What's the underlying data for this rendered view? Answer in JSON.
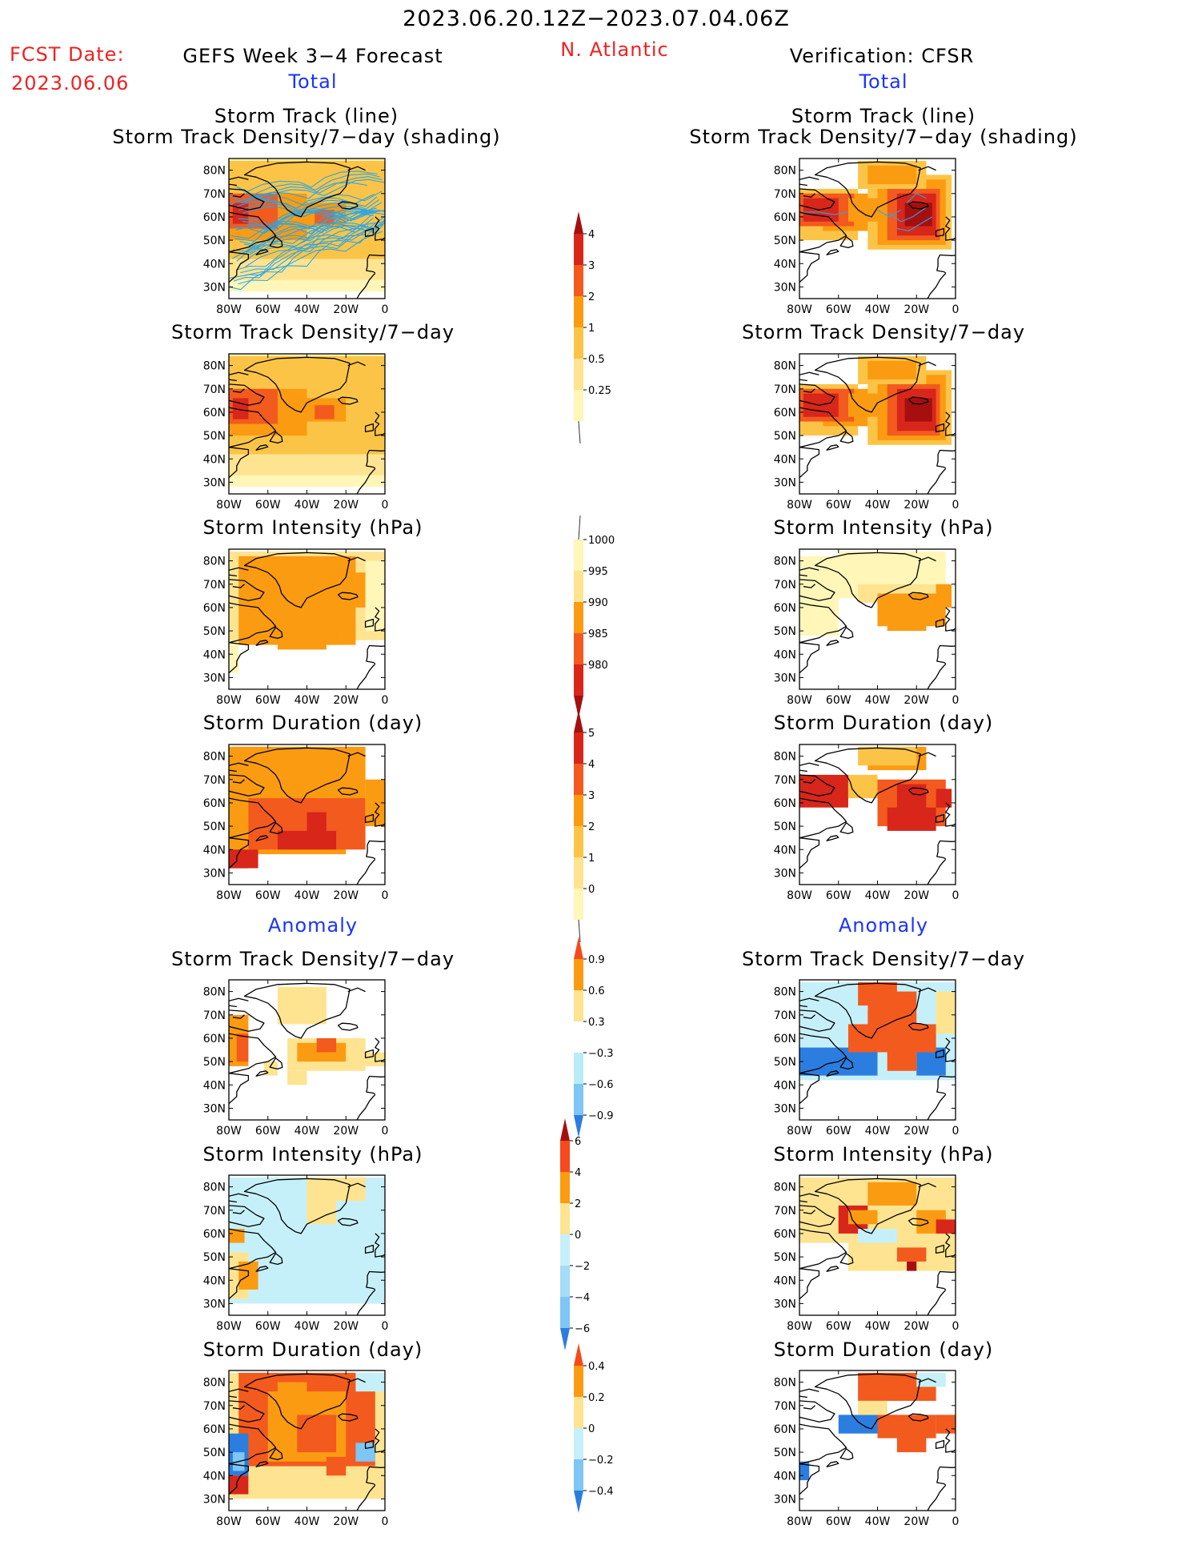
{
  "header": {
    "date_range": "2023.06.20.12Z−2023.07.04.06Z",
    "region": "N. Atlantic",
    "fcst_label": "FCST Date:",
    "fcst_date": "2023.06.06",
    "left_title": "GEFS Week 3−4 Forecast",
    "right_title": "Verification: CFSR",
    "left_total": "Total",
    "right_total": "Total",
    "left_anomaly": "Anomaly",
    "right_anomaly": "Anomaly"
  },
  "panel_titles": {
    "track_l1": "Storm Track (line)",
    "track_l2": "Storm Track Density/7−day (shading)",
    "density": "Storm Track Density/7−day",
    "intensity": "Storm Intensity (hPa)",
    "duration": "Storm Duration (day)"
  },
  "axis": {
    "lat_labels": [
      "80N",
      "70N",
      "60N",
      "50N",
      "40N",
      "30N"
    ],
    "lon_labels": [
      "80W",
      "60W",
      "40W",
      "20W",
      "0"
    ]
  },
  "colorbars": {
    "density_total": {
      "labels": [
        "4",
        "3",
        "2",
        "1",
        "0.5",
        "0.25"
      ],
      "colors": [
        "#a50f0f",
        "#d8261b",
        "#f35a1e",
        "#fb9b12",
        "#fcc447",
        "#fee491",
        "#fff6b8"
      ]
    },
    "intensity_total": {
      "labels": [
        "1000",
        "995",
        "990",
        "985",
        "980"
      ],
      "colors": [
        "#fff6b8",
        "#fee491",
        "#fb9b12",
        "#f35a1e",
        "#d8261b",
        "#a50f0f"
      ]
    },
    "duration_total": {
      "labels": [
        "5",
        "4",
        "3",
        "2",
        "1",
        "0"
      ],
      "colors": [
        "#a50f0f",
        "#d8261b",
        "#f35a1e",
        "#fb9b12",
        "#fcc447",
        "#fee491",
        "#fff6b8"
      ]
    },
    "density_anom": {
      "labels": [
        "0.9",
        "0.6",
        "0.3",
        "−0.3",
        "−0.6",
        "−0.9"
      ],
      "colors": [
        "#f64a1c",
        "#fb9b12",
        "#fee491",
        "#ffffff",
        "#b8ecf7",
        "#7ec6f5",
        "#2b7ee0"
      ]
    },
    "intensity_anom": {
      "labels": [
        "6",
        "4",
        "2",
        "0",
        "−2",
        "−4",
        "−6"
      ],
      "colors": [
        "#a50f0f",
        "#f64a1c",
        "#fb9b12",
        "#fee491",
        "#c6f0f9",
        "#a5dcf7",
        "#7ec6f5",
        "#2b7ee0"
      ]
    },
    "duration_anom": {
      "labels": [
        "0.4",
        "0.2",
        "0",
        "−0.2",
        "−0.4"
      ],
      "colors": [
        "#f64a1c",
        "#fb9b12",
        "#fee491",
        "#c6f0f9",
        "#7ec6f5",
        "#2b7ee0"
      ]
    }
  },
  "palette": {
    "track_line": "#2aa6e8",
    "deep_red": "#a50f0f",
    "red": "#d8261b",
    "orange_red": "#f35a1e",
    "orange": "#fb9b12",
    "gold": "#fcc447",
    "light_yellow": "#fee491",
    "pale_yellow": "#fff6b8",
    "light_blue": "#c6f0f9",
    "mid_blue": "#7ec6f5",
    "blue": "#2b7ee0"
  }
}
